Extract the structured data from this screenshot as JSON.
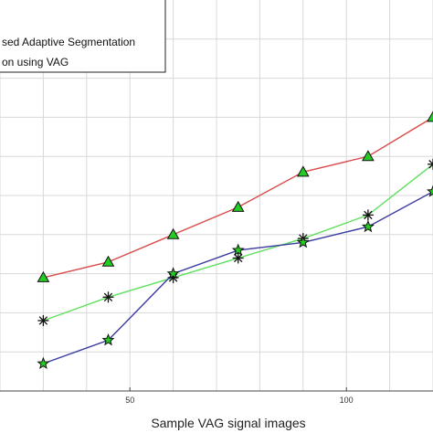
{
  "chart_data": {
    "type": "line",
    "xlabel": "Sample VAG signal images",
    "xlim": [
      20,
      120
    ],
    "ylim": [
      0,
      100
    ],
    "grid": true,
    "x_ticks": [
      50,
      100
    ],
    "x_tick_labels": [
      "50",
      "100"
    ],
    "x": [
      30,
      45,
      60,
      75,
      90,
      105,
      120
    ],
    "legend": {
      "placement": "top-left",
      "entries": [
        "",
        "sed Adaptive Segmentation",
        "on using VAG"
      ]
    },
    "series": [
      {
        "name": "sed Adaptive Segmentation",
        "color": "#d94c4c",
        "marker": "triangle-green",
        "values": [
          29,
          33,
          40,
          47,
          56,
          60,
          70
        ]
      },
      {
        "name": "on using VAG",
        "color": "#5ee05e",
        "marker": "asterisk",
        "values": [
          18,
          24,
          29,
          34,
          39,
          45,
          58
        ]
      },
      {
        "name": "",
        "color": "#3a3aa0",
        "marker": "star-green",
        "values": [
          7,
          13,
          30,
          36,
          38,
          42,
          51
        ]
      }
    ]
  }
}
